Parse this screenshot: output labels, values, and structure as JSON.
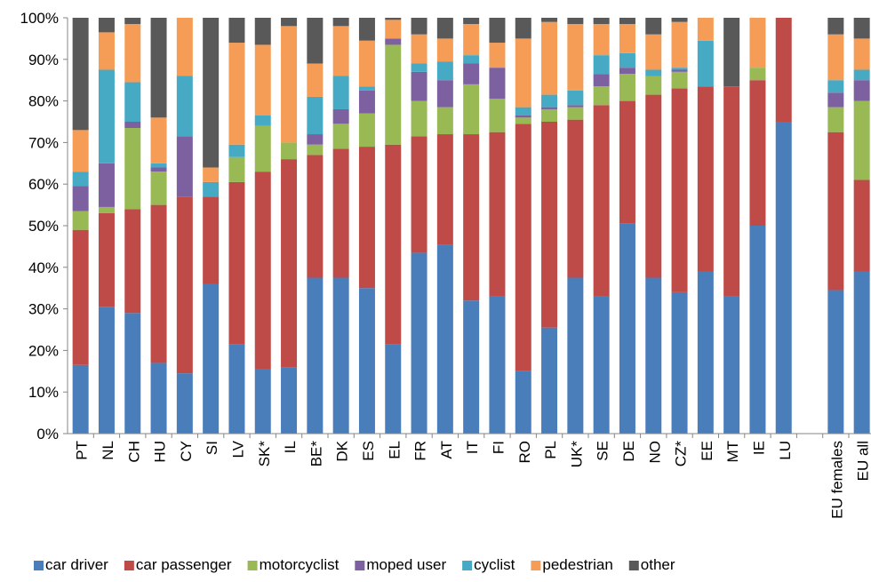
{
  "chart_data": {
    "type": "bar",
    "stacked": true,
    "percent": true,
    "title": "",
    "xlabel": "",
    "ylabel": "",
    "ylim": [
      0,
      100
    ],
    "y_ticks": [
      "0%",
      "10%",
      "20%",
      "30%",
      "40%",
      "50%",
      "60%",
      "70%",
      "80%",
      "90%",
      "100%"
    ],
    "grid": false,
    "legend_position": "bottom",
    "categories": [
      "PT",
      "NL",
      "CH",
      "HU",
      "CY",
      "SI",
      "LV",
      "SK*",
      "IL",
      "BE*",
      "DK",
      "ES",
      "EL",
      "FR",
      "AT",
      "IT",
      "FI",
      "RO",
      "PL",
      "UK*",
      "SE",
      "DE",
      "NO",
      "CZ*",
      "EE",
      "MT",
      "IE",
      "LU",
      "",
      "EU females",
      "EU all"
    ],
    "series": [
      {
        "name": "car driver",
        "color": "#4a7ebb",
        "values": [
          16.5,
          30.5,
          29,
          17,
          14.5,
          36,
          21.5,
          15.5,
          16,
          37.5,
          37.5,
          35,
          21.5,
          43.5,
          45.5,
          32,
          33,
          15,
          25.5,
          37.5,
          33,
          50.5,
          37.5,
          34,
          39,
          33,
          50,
          75,
          null,
          34.5,
          39
        ]
      },
      {
        "name": "car passenger",
        "color": "#be4b48",
        "values": [
          32.5,
          22.5,
          25,
          38,
          42.5,
          21,
          39,
          47.5,
          50,
          29.5,
          31,
          34,
          48,
          28,
          26.5,
          40,
          39.5,
          59.5,
          49.5,
          38,
          46,
          29.5,
          44,
          49,
          44.5,
          50.5,
          35,
          25,
          null,
          38,
          22
        ]
      },
      {
        "name": "motorcyclist",
        "color": "#98b954",
        "values": [
          4.5,
          1.5,
          19.5,
          8,
          0,
          0,
          6,
          11,
          4,
          2.5,
          6,
          8,
          24,
          8.5,
          6.5,
          12,
          8,
          1.5,
          3,
          3,
          4.5,
          6.5,
          4.5,
          4,
          0,
          0,
          3,
          0,
          null,
          6,
          19
        ]
      },
      {
        "name": "moped user",
        "color": "#7d60a0",
        "values": [
          6,
          10.5,
          1.5,
          1,
          14.5,
          0,
          0,
          0,
          0,
          2.5,
          3.5,
          5.5,
          1.5,
          7,
          6.5,
          5,
          7.5,
          0.5,
          0.5,
          0.5,
          3,
          1.5,
          0,
          0.5,
          0,
          0,
          0,
          0,
          null,
          3.5,
          5
        ]
      },
      {
        "name": "cyclist",
        "color": "#46aac5",
        "values": [
          3.5,
          22.5,
          9.5,
          1,
          14.5,
          3.5,
          3,
          2.5,
          0,
          9,
          8,
          1,
          0,
          2,
          4.5,
          2,
          0,
          2,
          3,
          3.5,
          4.5,
          3.5,
          1.5,
          0.5,
          11,
          0,
          0,
          0,
          null,
          3,
          2.5
        ]
      },
      {
        "name": "pedestrian",
        "color": "#f59d56",
        "values": [
          10,
          9,
          14,
          11,
          14,
          3.5,
          24.5,
          17,
          28,
          8,
          12,
          11,
          4.5,
          7,
          5.5,
          7.5,
          6,
          16.5,
          17.5,
          16,
          7.5,
          7,
          8.5,
          11,
          5.5,
          0,
          12,
          0,
          null,
          11,
          7.5
        ]
      },
      {
        "name": "other",
        "color": "#595959",
        "values": [
          27,
          3.5,
          1.5,
          24,
          0,
          36,
          6,
          6.5,
          2,
          11,
          2,
          5.5,
          0.5,
          4,
          5,
          1.5,
          6,
          5,
          1,
          1.5,
          1.5,
          1.5,
          4,
          1,
          0,
          16.5,
          0,
          0,
          null,
          4,
          5
        ]
      }
    ]
  }
}
